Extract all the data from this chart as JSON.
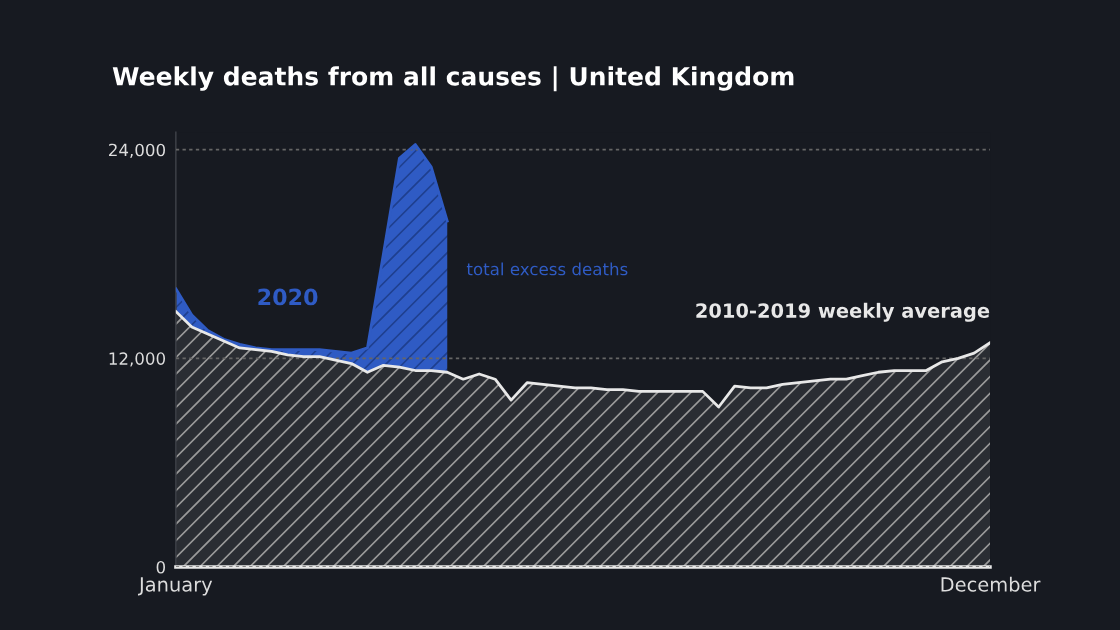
{
  "chart_data": {
    "type": "area",
    "title": "Weekly deaths from all causes | United Kingdom",
    "categories": [
      "January",
      null,
      null,
      null,
      null,
      null,
      null,
      null,
      null,
      null,
      null,
      null,
      null,
      null,
      null,
      null,
      null,
      null,
      null,
      null,
      null,
      null,
      null,
      null,
      null,
      null,
      null,
      null,
      null,
      null,
      null,
      null,
      null,
      null,
      null,
      null,
      null,
      null,
      null,
      null,
      null,
      null,
      null,
      null,
      null,
      null,
      null,
      null,
      null,
      null,
      null,
      "December"
    ],
    "series": [
      {
        "name": "2010-2019 weekly average",
        "color": "#e8e8e8",
        "values": [
          14700,
          13800,
          13400,
          13000,
          12600,
          12500,
          12400,
          12200,
          12100,
          12100,
          11900,
          11700,
          11200,
          11600,
          11500,
          11300,
          11300,
          11200,
          10800,
          11100,
          10800,
          9600,
          10600,
          10500,
          10400,
          10300,
          10300,
          10200,
          10200,
          10100,
          10100,
          10100,
          10100,
          10100,
          9200,
          10400,
          10300,
          10300,
          10500,
          10600,
          10700,
          10800,
          10800,
          11000,
          11200,
          11300,
          11300,
          11300,
          11800,
          12000,
          12300,
          12900
        ]
      },
      {
        "name": "2020",
        "color": "#2f5bc4",
        "values": [
          16000,
          14500,
          13600,
          13100,
          12800,
          12600,
          12500,
          12500,
          12500,
          12500,
          12400,
          12300,
          12600,
          18000,
          23500,
          24300,
          23000,
          19900,
          null,
          null,
          null,
          null,
          null,
          null,
          null,
          null,
          null,
          null,
          null,
          null,
          null,
          null,
          null,
          null,
          null,
          null,
          null,
          null,
          null,
          null,
          null,
          null,
          null,
          null,
          null,
          null,
          null,
          null,
          null,
          null,
          null,
          null
        ]
      }
    ],
    "annotations": [
      "total excess deaths"
    ],
    "ylim": [
      0,
      25000
    ],
    "yticks": [
      0,
      {
        "value": 12000,
        "label": "12,000"
      },
      {
        "value": 24000,
        "label": "24,000"
      }
    ],
    "grid": "y",
    "legend": false
  }
}
